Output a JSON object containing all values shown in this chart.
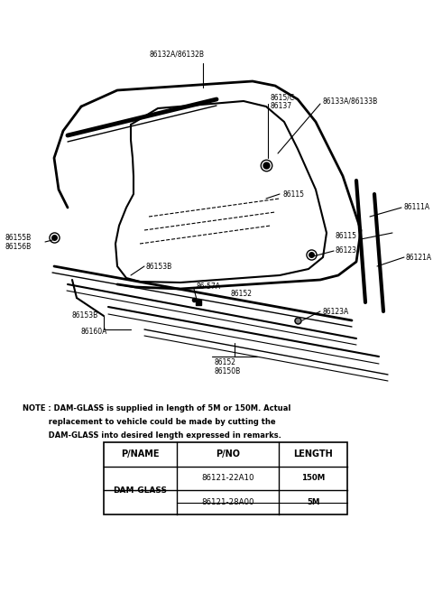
{
  "bg_color": "#ffffff",
  "fig_width": 4.8,
  "fig_height": 6.57,
  "dpi": 100,
  "note_line1": "NOTE : DAM-GLASS is supplied in length of 5M or 150M. Actual",
  "note_line2": "          replacement to vehicle could be made by cutting the",
  "note_line3": "          DAM-GLASS into desired length expressed in remarks.",
  "table_headers": [
    "P/NAME",
    "P/NO",
    "LENGTH"
  ],
  "table_col1": "DAM-GLASS",
  "table_pno1": "86121-22A10",
  "table_len1": "150M",
  "table_pno2": "86121-28A00",
  "table_len2": "5M"
}
